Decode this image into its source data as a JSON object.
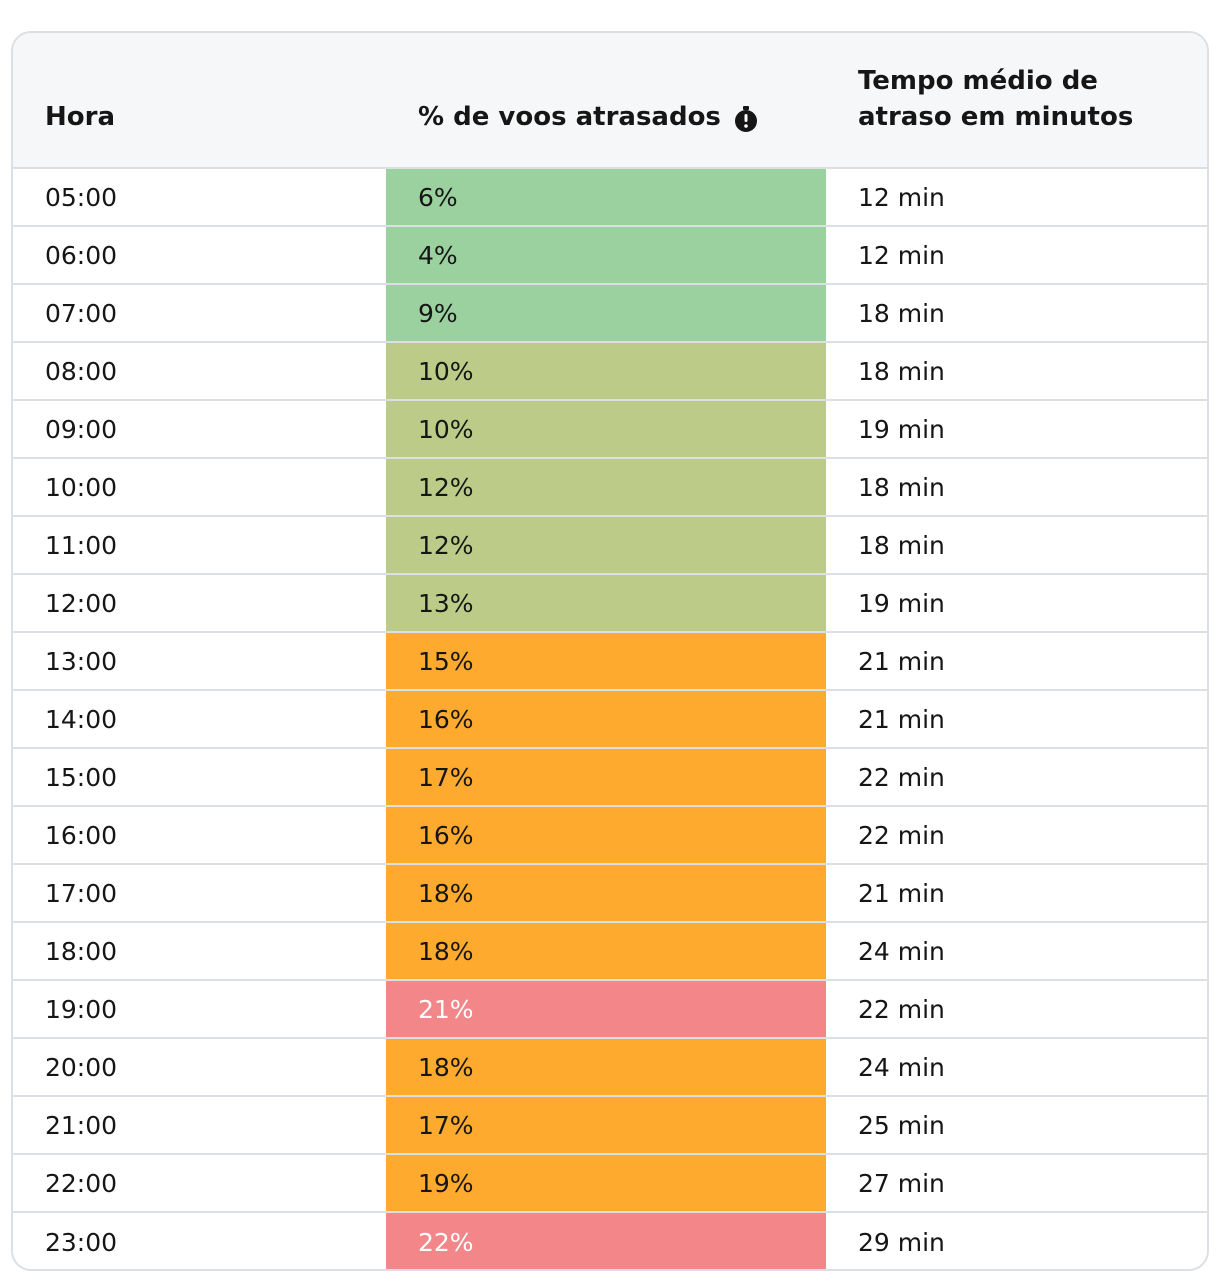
{
  "table": {
    "headers": [
      "Hora",
      "% de voos atrasados",
      "Tempo médio de atraso em minutos"
    ],
    "rows": [
      {
        "hour": "05:00",
        "delay": "6%",
        "minutes": "12 min",
        "color": "#9ad19f"
      },
      {
        "hour": "06:00",
        "delay": "4%",
        "minutes": "12 min",
        "color": "#9ad19f"
      },
      {
        "hour": "07:00",
        "delay": "9%",
        "minutes": "18 min",
        "color": "#9ad19f"
      },
      {
        "hour": "08:00",
        "delay": "10%",
        "minutes": "18 min",
        "color": "#bccb87"
      },
      {
        "hour": "09:00",
        "delay": "10%",
        "minutes": "19 min",
        "color": "#bccb87"
      },
      {
        "hour": "10:00",
        "delay": "12%",
        "minutes": "18 min",
        "color": "#bccb87"
      },
      {
        "hour": "11:00",
        "delay": "12%",
        "minutes": "18 min",
        "color": "#bccb87"
      },
      {
        "hour": "12:00",
        "delay": "13%",
        "minutes": "19 min",
        "color": "#bccb87"
      },
      {
        "hour": "13:00",
        "delay": "15%",
        "minutes": "21 min",
        "color": "#fdaa2f"
      },
      {
        "hour": "14:00",
        "delay": "16%",
        "minutes": "21 min",
        "color": "#fdaa2f"
      },
      {
        "hour": "15:00",
        "delay": "17%",
        "minutes": "22 min",
        "color": "#fdaa2f"
      },
      {
        "hour": "16:00",
        "delay": "16%",
        "minutes": "22 min",
        "color": "#fdaa2f"
      },
      {
        "hour": "17:00",
        "delay": "18%",
        "minutes": "21 min",
        "color": "#fdaa2f"
      },
      {
        "hour": "18:00",
        "delay": "18%",
        "minutes": "24 min",
        "color": "#fdaa2f"
      },
      {
        "hour": "19:00",
        "delay": "21%",
        "minutes": "22 min",
        "color": "#f38689",
        "text_color": "#ffffff"
      },
      {
        "hour": "20:00",
        "delay": "18%",
        "minutes": "24 min",
        "color": "#fdaa2f"
      },
      {
        "hour": "21:00",
        "delay": "17%",
        "minutes": "25 min",
        "color": "#fdaa2f"
      },
      {
        "hour": "22:00",
        "delay": "19%",
        "minutes": "27 min",
        "color": "#fdaa2f"
      },
      {
        "hour": "23:00",
        "delay": "22%",
        "minutes": "29 min",
        "color": "#f38689",
        "text_color": "#ffffff"
      }
    ]
  }
}
